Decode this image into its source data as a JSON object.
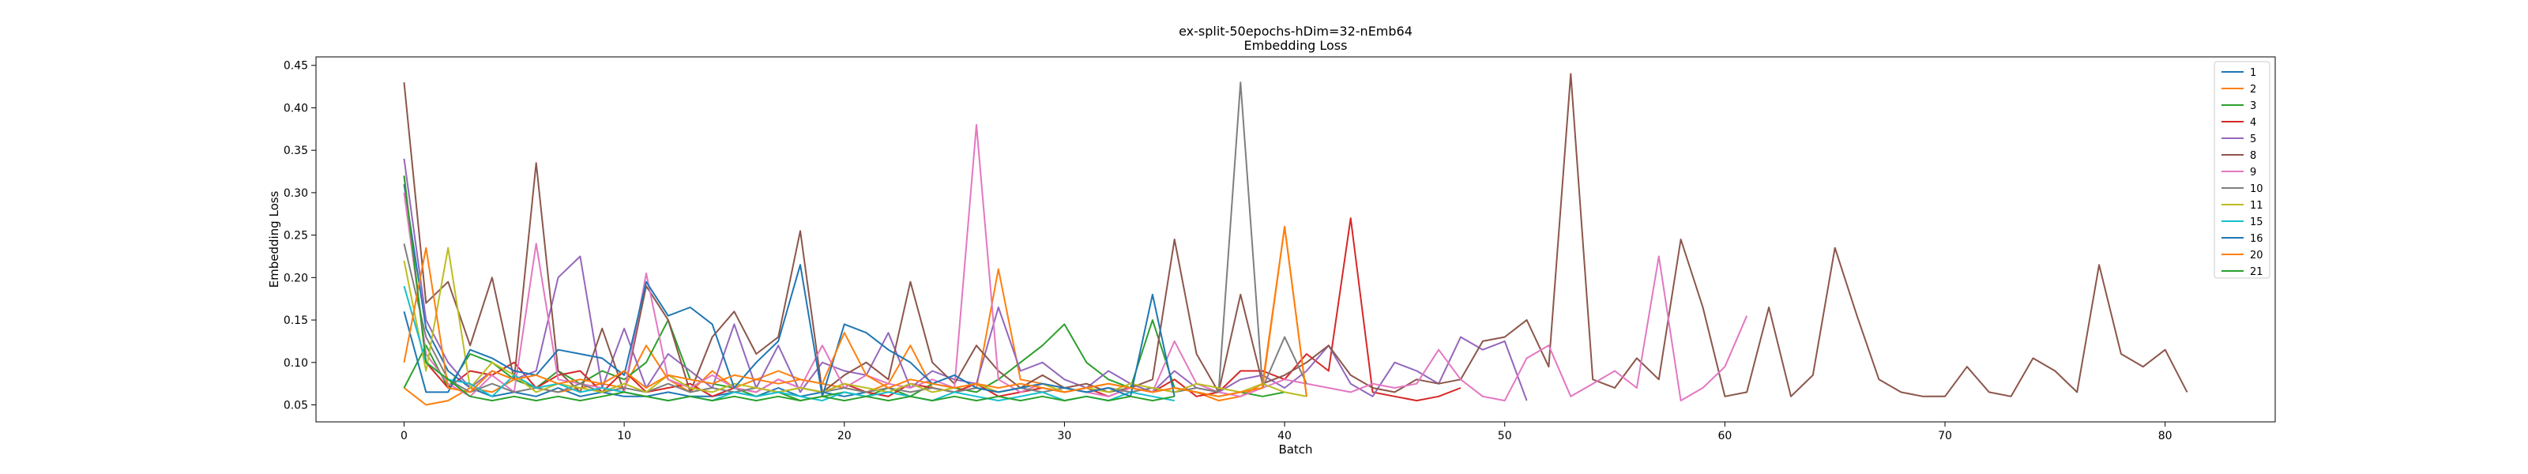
{
  "chart_data": {
    "type": "line",
    "title": "ex-split-50epochs-hDim=32-nEmb64",
    "subtitle": "Embedding Loss",
    "xlabel": "Batch",
    "ylabel": "Embedding Loss",
    "xlim": [
      -4,
      85
    ],
    "ylim": [
      0.03,
      0.46
    ],
    "xticks": [
      0,
      10,
      20,
      30,
      40,
      50,
      60,
      70,
      80
    ],
    "yticks": [
      0.05,
      0.1,
      0.15,
      0.2,
      0.25,
      0.3,
      0.35,
      0.4,
      0.45
    ],
    "ytick_labels": [
      "0.05",
      "0.10",
      "0.15",
      "0.20",
      "0.25",
      "0.30",
      "0.35",
      "0.40",
      "0.45"
    ],
    "grid": false,
    "legend_position": "top-right",
    "series": [
      {
        "name": "1",
        "color": "#1f77b4",
        "values": [
          0.31,
          0.14,
          0.09,
          0.07,
          0.06,
          0.065,
          0.06,
          0.07,
          0.06,
          0.065,
          0.06,
          0.06,
          0.065,
          0.06,
          0.06,
          0.065,
          0.06,
          0.07,
          0.06,
          0.065,
          0.06,
          0.065,
          0.06
        ]
      },
      {
        "name": "2",
        "color": "#ff7f0e",
        "values": [
          0.07,
          0.05,
          0.055,
          0.07,
          0.065,
          0.08,
          0.07,
          0.065,
          0.07,
          0.075,
          0.07,
          0.12,
          0.08,
          0.065,
          0.09,
          0.07,
          0.08,
          0.09,
          0.08,
          0.075,
          0.07,
          0.065,
          0.075,
          0.12,
          0.07,
          0.065,
          0.07,
          0.21,
          0.08,
          0.075,
          0.065,
          0.07,
          0.075,
          0.07,
          0.065,
          0.07,
          0.065,
          0.055,
          0.06,
          0.075,
          0.26,
          0.06
        ]
      },
      {
        "name": "3",
        "color": "#2ca02c",
        "values": [
          0.07,
          0.12,
          0.07,
          0.11,
          0.1,
          0.08,
          0.07,
          0.09,
          0.075,
          0.09,
          0.08,
          0.1,
          0.15,
          0.08,
          0.075,
          0.07,
          0.06,
          0.065,
          0.055,
          0.06,
          0.065,
          0.06,
          0.07,
          0.06,
          0.075,
          0.07,
          0.065,
          0.08,
          0.1,
          0.12,
          0.145,
          0.1,
          0.08,
          0.07,
          0.15,
          0.07,
          0.065,
          0.06,
          0.065,
          0.06,
          0.065
        ]
      },
      {
        "name": "4",
        "color": "#d62728",
        "values": [
          0.32,
          0.1,
          0.07,
          0.09,
          0.085,
          0.1,
          0.07,
          0.085,
          0.09,
          0.065,
          0.09,
          0.065,
          0.07,
          0.075,
          0.06,
          0.07,
          0.065,
          0.08,
          0.07,
          0.065,
          0.075,
          0.065,
          0.06,
          0.075,
          0.07,
          0.065,
          0.075,
          0.06,
          0.065,
          0.07,
          0.065,
          0.07,
          0.06,
          0.07,
          0.065,
          0.08,
          0.06,
          0.065,
          0.09,
          0.09,
          0.08,
          0.11,
          0.09,
          0.27,
          0.065,
          0.06,
          0.055,
          0.06,
          0.07
        ]
      },
      {
        "name": "5",
        "color": "#9467bd",
        "values": [
          0.34,
          0.15,
          0.1,
          0.07,
          0.09,
          0.08,
          0.09,
          0.2,
          0.225,
          0.07,
          0.14,
          0.07,
          0.11,
          0.09,
          0.07,
          0.145,
          0.07,
          0.12,
          0.065,
          0.1,
          0.09,
          0.085,
          0.135,
          0.07,
          0.09,
          0.08,
          0.075,
          0.165,
          0.09,
          0.1,
          0.08,
          0.07,
          0.09,
          0.075,
          0.065,
          0.09,
          0.07,
          0.065,
          0.08,
          0.085,
          0.07,
          0.09,
          0.12,
          0.075,
          0.06,
          0.1,
          0.09,
          0.075,
          0.13,
          0.115,
          0.125,
          0.055
        ]
      },
      {
        "name": "8",
        "color": "#8c564b",
        "values": [
          0.43,
          0.17,
          0.195,
          0.12,
          0.2,
          0.08,
          0.335,
          0.09,
          0.065,
          0.14,
          0.065,
          0.19,
          0.15,
          0.065,
          0.13,
          0.16,
          0.11,
          0.13,
          0.255,
          0.065,
          0.085,
          0.1,
          0.08,
          0.195,
          0.1,
          0.075,
          0.12,
          0.09,
          0.07,
          0.085,
          0.07,
          0.075,
          0.065,
          0.07,
          0.08,
          0.245,
          0.11,
          0.065,
          0.18,
          0.075,
          0.085,
          0.1,
          0.12,
          0.085,
          0.07,
          0.065,
          0.08,
          0.075,
          0.08,
          0.125,
          0.13,
          0.15,
          0.095,
          0.44,
          0.08,
          0.07,
          0.105,
          0.08,
          0.245,
          0.165,
          0.06,
          0.065,
          0.165,
          0.06,
          0.085,
          0.235,
          0.155,
          0.08,
          0.065,
          0.06,
          0.06,
          0.095,
          0.065,
          0.06,
          0.105,
          0.09,
          0.065,
          0.215,
          0.11,
          0.095,
          0.115,
          0.065
        ]
      },
      {
        "name": "9",
        "color": "#e377c2",
        "values": [
          0.3,
          0.11,
          0.075,
          0.06,
          0.085,
          0.065,
          0.24,
          0.08,
          0.075,
          0.07,
          0.065,
          0.205,
          0.08,
          0.07,
          0.085,
          0.07,
          0.065,
          0.08,
          0.07,
          0.12,
          0.07,
          0.085,
          0.075,
          0.07,
          0.08,
          0.07,
          0.38,
          0.08,
          0.065,
          0.075,
          0.07,
          0.065,
          0.06,
          0.07,
          0.065,
          0.125,
          0.075,
          0.065,
          0.06,
          0.07,
          0.08,
          0.075,
          0.07,
          0.065,
          0.075,
          0.07,
          0.075,
          0.115,
          0.08,
          0.06,
          0.055,
          0.105,
          0.12,
          0.06,
          0.075,
          0.09,
          0.07,
          0.225,
          0.055,
          0.07,
          0.095,
          0.155
        ]
      },
      {
        "name": "10",
        "color": "#7f7f7f",
        "values": [
          0.24,
          0.13,
          0.08,
          0.065,
          0.075,
          0.065,
          0.07,
          0.065,
          0.075,
          0.065,
          0.07,
          0.065,
          0.075,
          0.065,
          0.07,
          0.065,
          0.07,
          0.065,
          0.07,
          0.065,
          0.07,
          0.065,
          0.07,
          0.065,
          0.07,
          0.065,
          0.07,
          0.065,
          0.07,
          0.065,
          0.07,
          0.065,
          0.07,
          0.065,
          0.07,
          0.065,
          0.07,
          0.065,
          0.43,
          0.07,
          0.13,
          0.075
        ]
      },
      {
        "name": "11",
        "color": "#bcbd22",
        "values": [
          0.22,
          0.09,
          0.235,
          0.07,
          0.1,
          0.085,
          0.065,
          0.075,
          0.07,
          0.065,
          0.075,
          0.065,
          0.085,
          0.07,
          0.065,
          0.075,
          0.07,
          0.065,
          0.07,
          0.065,
          0.075,
          0.07,
          0.065,
          0.075,
          0.065,
          0.07,
          0.075,
          0.065,
          0.07,
          0.075,
          0.065,
          0.07,
          0.065,
          0.075,
          0.07,
          0.065,
          0.075,
          0.07,
          0.065,
          0.075,
          0.065,
          0.06
        ]
      },
      {
        "name": "15",
        "color": "#17becf",
        "values": [
          0.19,
          0.1,
          0.08,
          0.075,
          0.06,
          0.085,
          0.07,
          0.075,
          0.065,
          0.07,
          0.065,
          0.06,
          0.055,
          0.06,
          0.055,
          0.065,
          0.06,
          0.065,
          0.06,
          0.055,
          0.065,
          0.06,
          0.065,
          0.06,
          0.055,
          0.065,
          0.06,
          0.055,
          0.06,
          0.065,
          0.055,
          0.06,
          0.055,
          0.065,
          0.06,
          0.055
        ]
      },
      {
        "name": "16",
        "color": "#1f77b4",
        "values": [
          0.16,
          0.065,
          0.065,
          0.115,
          0.105,
          0.09,
          0.085,
          0.115,
          0.11,
          0.105,
          0.085,
          0.195,
          0.155,
          0.165,
          0.145,
          0.07,
          0.1,
          0.125,
          0.215,
          0.06,
          0.145,
          0.135,
          0.115,
          0.1,
          0.075,
          0.085,
          0.07,
          0.065,
          0.07,
          0.075,
          0.07,
          0.065,
          0.07,
          0.06,
          0.18,
          0.06
        ]
      },
      {
        "name": "20",
        "color": "#ff7f0e",
        "values": [
          0.1,
          0.235,
          0.07,
          0.065,
          0.09,
          0.08,
          0.085,
          0.075,
          0.08,
          0.075,
          0.09,
          0.07,
          0.085,
          0.08,
          0.075,
          0.085,
          0.08,
          0.075,
          0.08,
          0.075,
          0.135,
          0.085,
          0.07,
          0.08,
          0.075,
          0.07,
          0.075,
          0.07,
          0.075,
          0.07,
          0.065,
          0.07,
          0.075,
          0.07,
          0.065,
          0.07,
          0.065,
          0.06,
          0.065,
          0.07,
          0.26,
          0.06
        ]
      },
      {
        "name": "21",
        "color": "#2ca02c",
        "values": [
          0.32,
          0.1,
          0.08,
          0.06,
          0.055,
          0.06,
          0.055,
          0.06,
          0.055,
          0.06,
          0.065,
          0.06,
          0.055,
          0.06,
          0.055,
          0.06,
          0.055,
          0.06,
          0.055,
          0.06,
          0.055,
          0.06,
          0.055,
          0.06,
          0.055,
          0.06,
          0.055,
          0.06,
          0.055,
          0.06,
          0.055,
          0.06,
          0.055,
          0.06,
          0.055,
          0.06
        ]
      }
    ]
  }
}
